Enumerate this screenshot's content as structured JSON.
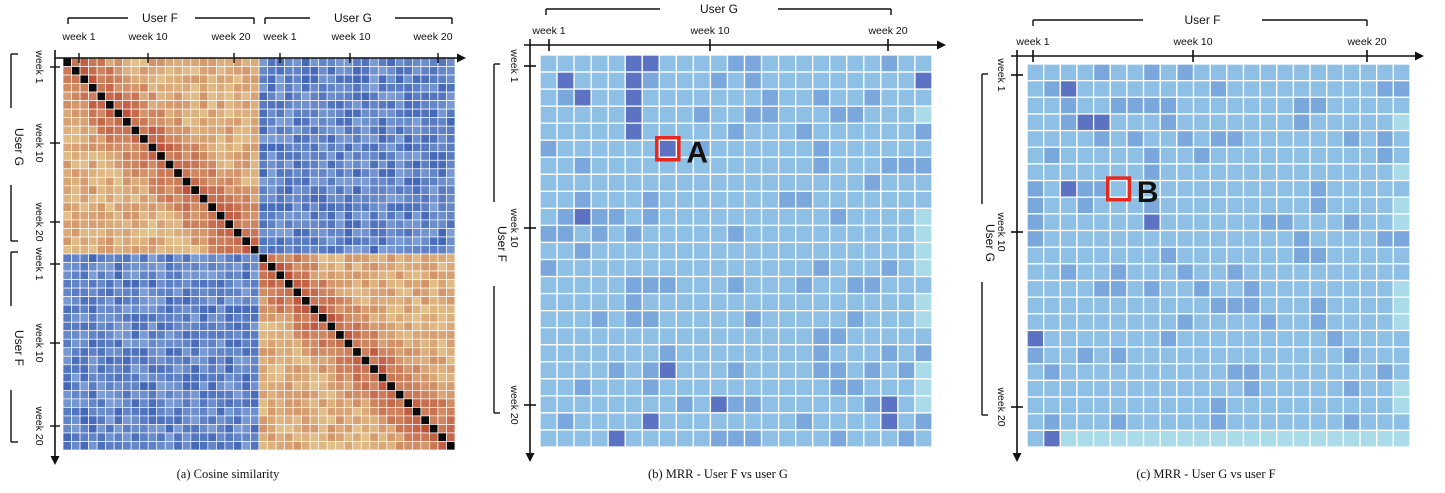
{
  "chart_data": [
    {
      "type": "heatmap",
      "caption": "(a) Cosine similarity",
      "top_groups": [
        "User F",
        "User G"
      ],
      "left_groups": [
        "User G",
        "User F"
      ],
      "x_ticks": [
        "week 1",
        "week 10",
        "week 20",
        "week 1",
        "week 10",
        "week 20"
      ],
      "y_ticks": [
        "week 1",
        "week 10",
        "week 20",
        "week 1",
        "week 10",
        "week 20"
      ],
      "grid": {
        "rows": 46,
        "cols": 46
      },
      "diagonal": "black (self-similarity)",
      "blocks": {
        "same_user": "warm tan-to-red (high similarity)",
        "cross_user": "blue (low similarity)"
      }
    },
    {
      "type": "heatmap",
      "caption": "(b) MRR - User F vs user G",
      "x_label": "User G",
      "y_label": "User F",
      "x_ticks": [
        "week 1",
        "week 10",
        "week 20"
      ],
      "y_ticks": [
        "week 1",
        "week 10",
        "week 20"
      ],
      "grid": {
        "rows": 23,
        "cols": 23
      },
      "annotation": {
        "label": "A",
        "row": 5,
        "col": 7
      }
    },
    {
      "type": "heatmap",
      "caption": "(c) MRR - User G vs user F",
      "x_label": "User F",
      "y_label": "User G",
      "x_ticks": [
        "week 1",
        "week 10",
        "week 20"
      ],
      "y_ticks": [
        "week 1",
        "week 10",
        "week 20"
      ],
      "grid": {
        "rows": 23,
        "cols": 23
      },
      "annotation": {
        "label": "B",
        "row": 7,
        "col": 5
      }
    }
  ]
}
